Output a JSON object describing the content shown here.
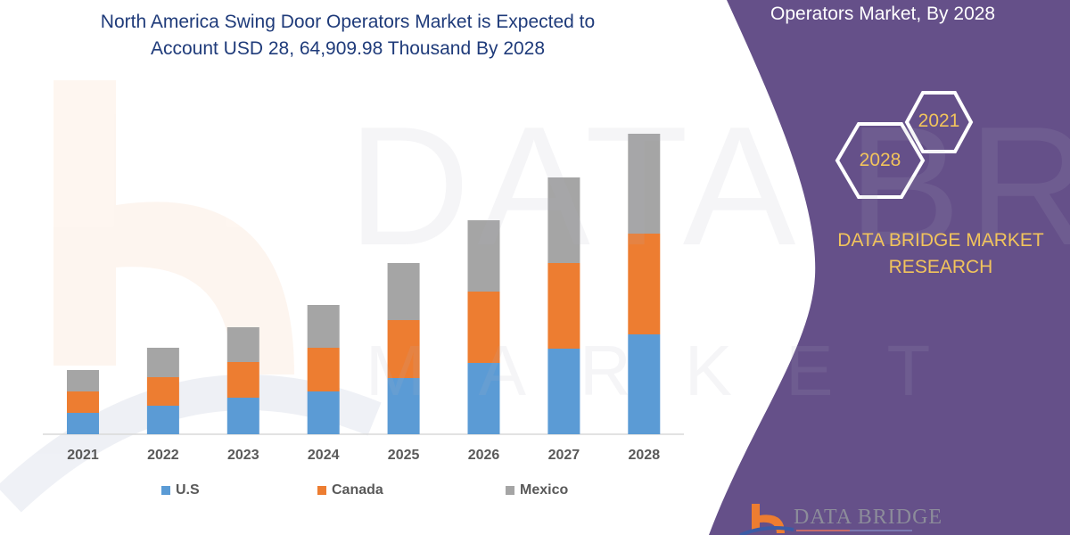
{
  "title_line1": "North America Swing Door Operators Market is Expected to",
  "title_line2": "Account USD 28, 64,909.98 Thousand By 2028",
  "side_panel": {
    "heading": "Operators Market, By 2028",
    "hex_labels": [
      "2021",
      "2028"
    ],
    "brand_line1": "DATA BRIDGE MARKET",
    "brand_line2": "RESEARCH",
    "logo_text": "DATA BRIDGE",
    "panel_color": "#655089",
    "accent_color": "#f2c45c"
  },
  "watermark": {
    "line1": "DATA BRIDGE",
    "line2": "MARKET"
  },
  "chart_data": {
    "type": "bar",
    "stacked": true,
    "title": "North America Swing Door Operators Market is Expected to Account USD 28, 64,909.98 Thousand By 2028",
    "xlabel": "",
    "ylabel": "",
    "y_axis_shown": false,
    "grid": false,
    "legend_position": "bottom",
    "categories": [
      "2021",
      "2022",
      "2023",
      "2024",
      "2025",
      "2026",
      "2027",
      "2028"
    ],
    "series": [
      {
        "name": "U.S",
        "color": "#5b9bd5",
        "values": [
          24,
          32,
          41,
          48,
          63,
          80,
          96,
          112
        ]
      },
      {
        "name": "Canada",
        "color": "#ed7d31",
        "values": [
          24,
          32,
          40,
          49,
          65,
          80,
          96,
          113
        ]
      },
      {
        "name": "Mexico",
        "color": "#a5a5a5",
        "values": [
          24,
          33,
          39,
          48,
          64,
          80,
          96,
          112
        ]
      }
    ]
  }
}
